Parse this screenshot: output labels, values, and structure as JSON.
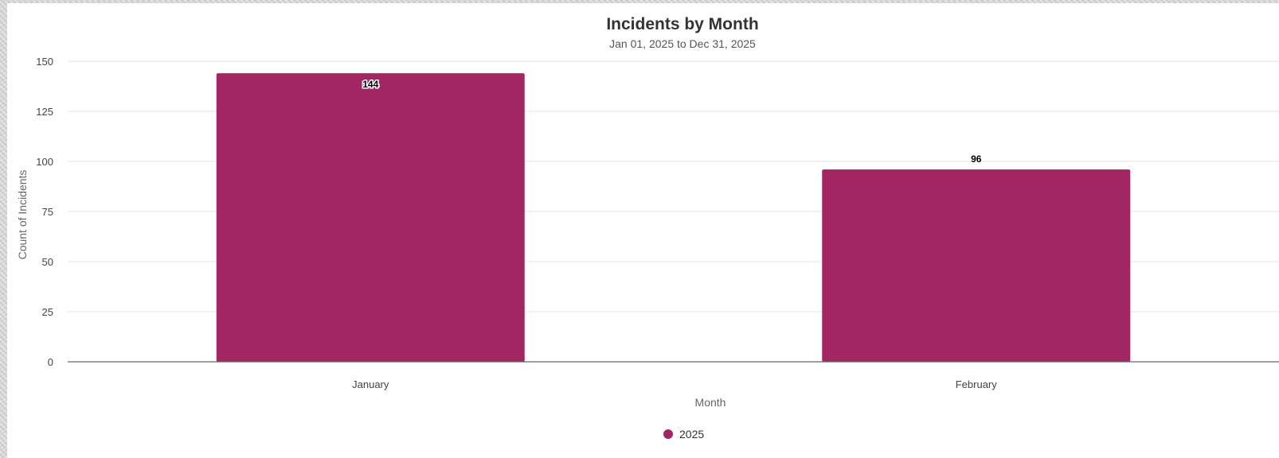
{
  "chart_data": {
    "type": "bar",
    "title": "Incidents by Month",
    "subtitle": "Jan 01, 2025 to Dec 31, 2025",
    "xlabel": "Month",
    "ylabel": "Count of Incidents",
    "categories": [
      "January",
      "February"
    ],
    "series": [
      {
        "name": "2025",
        "values": [
          144,
          96
        ],
        "color": "#a22661"
      }
    ],
    "ylim": [
      0,
      150
    ],
    "yticks": [
      0,
      25,
      50,
      75,
      100,
      125,
      150
    ],
    "grid": true,
    "legend_position": "bottom-center"
  }
}
